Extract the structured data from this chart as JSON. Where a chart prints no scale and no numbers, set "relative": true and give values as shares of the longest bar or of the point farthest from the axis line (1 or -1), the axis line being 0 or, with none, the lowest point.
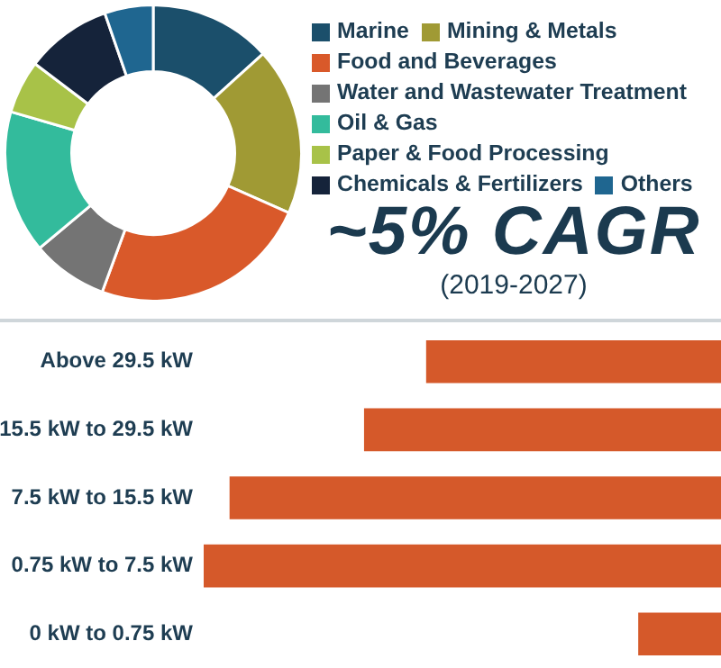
{
  "chart_data": [
    {
      "type": "donut",
      "categories": [
        "Marine",
        "Mining & Metals",
        "Food and Beverages",
        "Water and Wastewater Treatment",
        "Oil & Gas",
        "Paper & Food Processing",
        "Chemicals & Fertilizers",
        "Others"
      ],
      "values": [
        13.3,
        18.3,
        24.0,
        8.3,
        15.6,
        5.8,
        9.4,
        5.3
      ],
      "colors": [
        "#1b4f6b",
        "#a09a34",
        "#d9592a",
        "#747474",
        "#33bb9c",
        "#a8c248",
        "#15233a",
        "#1f6690"
      ],
      "legend": "right",
      "annotations": [
        "~5% CAGR",
        "(2019-2027)"
      ]
    },
    {
      "type": "bar",
      "orientation": "horizontal",
      "relative": true,
      "categories": [
        "Above 29.5 kW",
        "15.5 kW to 29.5 kW",
        "7.5 kW to 15.5 kW",
        "0.75 kW to 7.5 kW",
        "0 kW to 0.75 kW"
      ],
      "values": [
        0.57,
        0.69,
        0.95,
        1,
        0.16
      ],
      "color": "#d5592a"
    }
  ]
}
